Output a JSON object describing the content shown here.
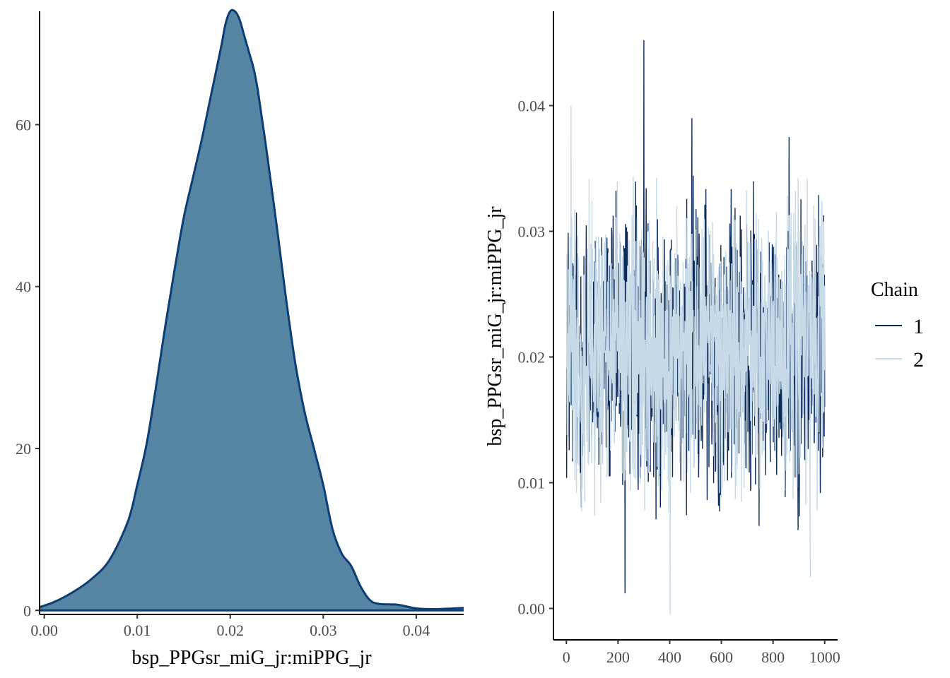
{
  "colors": {
    "density_fill": "#5585a2",
    "density_line": "#0d3d75",
    "chain1": "#0c2a5b",
    "chain2": "#c6dae7",
    "axis": "#000000",
    "tick_text": "#4d4d4d"
  },
  "chart_data": [
    {
      "type": "area",
      "subtype": "density",
      "xlabel": "bsp_PPGsr_miG_jr:miPPG_jr",
      "ylabel": "",
      "xlim": [
        -0.0005,
        0.0451
      ],
      "ylim": [
        -0.5,
        74
      ],
      "x_ticks": [
        0.0,
        0.01,
        0.02,
        0.03,
        0.04
      ],
      "x_tick_labels": [
        "0.00",
        "0.01",
        "0.02",
        "0.03",
        "0.04"
      ],
      "y_ticks": [
        0,
        20,
        40,
        60
      ],
      "y_tick_labels": [
        "0",
        "20",
        "40",
        "60"
      ],
      "grid": false,
      "series": [
        {
          "x": [
            -0.0005,
            0.001,
            0.003,
            0.005,
            0.007,
            0.009,
            0.01,
            0.011,
            0.012,
            0.013,
            0.014,
            0.015,
            0.016,
            0.017,
            0.018,
            0.019,
            0.0195,
            0.02,
            0.0205,
            0.021,
            0.0215,
            0.022,
            0.0225,
            0.023,
            0.024,
            0.025,
            0.026,
            0.027,
            0.028,
            0.029,
            0.03,
            0.031,
            0.032,
            0.033,
            0.034,
            0.035,
            0.036,
            0.038,
            0.04,
            0.042,
            0.0451
          ],
          "y": [
            0.4,
            1.0,
            2.2,
            3.8,
            6.2,
            11.0,
            15.5,
            20.5,
            27.5,
            35.0,
            42.0,
            48.5,
            53.5,
            58.5,
            64.0,
            69.5,
            72.5,
            74.0,
            74.0,
            73.0,
            71.0,
            69.0,
            67.0,
            64.0,
            56.0,
            47.5,
            38.5,
            30.5,
            24.5,
            20.0,
            15.5,
            10.0,
            7.0,
            5.5,
            3.0,
            1.3,
            0.8,
            0.7,
            0.25,
            0.15,
            0.3
          ]
        }
      ]
    },
    {
      "type": "line",
      "subtype": "trace",
      "xlabel": "",
      "ylabel": "bsp_PPGsr_miG_jr:miPPG_jr",
      "xlim": [
        -50,
        1050
      ],
      "ylim": [
        -0.0025,
        0.0475
      ],
      "x_ticks": [
        0,
        200,
        400,
        600,
        800,
        1000
      ],
      "x_tick_labels": [
        "0",
        "200",
        "400",
        "600",
        "800",
        "1000"
      ],
      "y_ticks": [
        0.0,
        0.01,
        0.02,
        0.03,
        0.04
      ],
      "y_tick_labels": [
        "0.00",
        "0.01",
        "0.02",
        "0.03",
        "0.04"
      ],
      "grid": false,
      "legend": {
        "title": "Chain",
        "position": "right",
        "entries": [
          "1",
          "2"
        ]
      },
      "series": [
        {
          "name": "1",
          "x_range": [
            1,
            1000
          ],
          "x_points": [
            1,
            10,
            100,
            224,
            227,
            300,
            400,
            486,
            489,
            600,
            700,
            862,
            865,
            1000
          ],
          "y_points": [
            0.025,
            0.0185,
            0.02,
            0.021,
            0.0012,
            0.0452,
            0.021,
            0.039,
            0.0215,
            0.0205,
            0.021,
            0.0375,
            0.0205,
            0.021
          ],
          "mean": 0.0205,
          "spread": 0.0055,
          "min": 0.0012,
          "max": 0.0452
        },
        {
          "name": "2",
          "x_range": [
            1,
            1000
          ],
          "x_points": [
            1,
            15,
            18,
            100,
            200,
            300,
            402,
            405,
            500,
            600,
            700,
            800,
            944,
            947,
            1000
          ],
          "y_points": [
            0.021,
            0.0205,
            0.04,
            0.0205,
            0.02,
            0.0205,
            -0.0005,
            0.0205,
            0.02,
            0.0205,
            0.02,
            0.0205,
            0.0025,
            0.0205,
            0.0205
          ],
          "mean": 0.0205,
          "spread": 0.0055,
          "min": -0.0005,
          "max": 0.04
        }
      ]
    }
  ]
}
